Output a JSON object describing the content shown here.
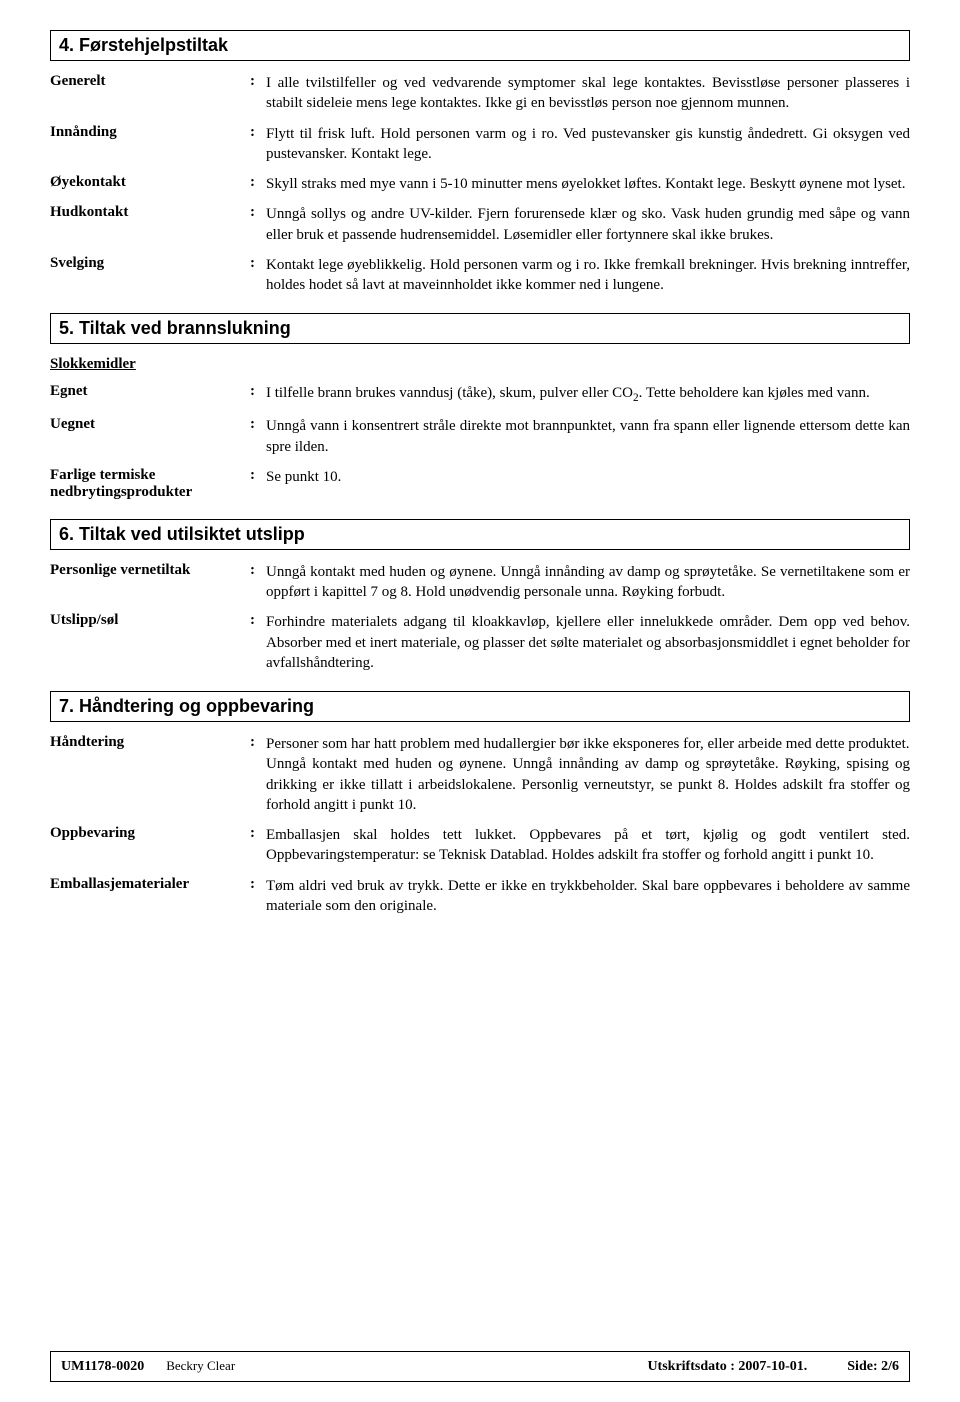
{
  "section4": {
    "title": "4.   Førstehjelpstiltak",
    "rows": [
      {
        "label": "Generelt",
        "value": "I alle tvilstilfeller og ved vedvarende symptomer skal lege kontaktes. Bevisstløse personer plasseres i stabilt sideleie mens lege kontaktes. Ikke gi en bevisstløs person noe gjennom munnen."
      },
      {
        "label": "Innånding",
        "value": "Flytt til frisk luft.  Hold personen varm og i ro.  Ved pustevansker gis kunstig åndedrett.  Gi oksygen ved pustevansker.  Kontakt lege."
      },
      {
        "label": "Øyekontakt",
        "value": "Skyll straks med mye vann i 5-10 minutter mens øyelokket løftes.  Kontakt lege.  Beskytt øynene mot lyset."
      },
      {
        "label": "Hudkontakt",
        "value": "Unngå sollys og andre UV-kilder.  Fjern forurensede klær og sko.  Vask huden grundig med såpe og vann eller bruk et passende hudrensemiddel.  Løsemidler eller fortynnere skal ikke brukes."
      },
      {
        "label": "Svelging",
        "value": "Kontakt lege øyeblikkelig.  Hold personen varm og i ro.  Ikke fremkall brekninger.  Hvis brekning inntreffer, holdes hodet så lavt at maveinnholdet ikke kommer ned i lungene."
      }
    ]
  },
  "section5": {
    "title": "5.   Tiltak ved brannslukning",
    "subhead": "Slokkemidler",
    "rows": [
      {
        "label": "Egnet",
        "value_html": "I tilfelle brann brukes vanndusj (tåke), skum, pulver eller CO<sub>2</sub>.  Tette beholdere kan kjøles med vann."
      },
      {
        "label": "Uegnet",
        "value": "Unngå vann i konsentrert stråle direkte mot brannpunktet, vann fra spann eller lignende ettersom dette kan spre ilden."
      },
      {
        "label": "Farlige termiske nedbrytingsprodukter",
        "value": "Se punkt 10."
      }
    ]
  },
  "section6": {
    "title": "6.   Tiltak ved utilsiktet utslipp",
    "rows": [
      {
        "label": "Personlige vernetiltak",
        "value": "Unngå kontakt med huden og øynene.  Unngå innånding av damp og sprøytetåke.  Se vernetiltakene som er oppført i kapittel 7 og 8.  Hold unødvendig personale unna.  Røyking forbudt."
      },
      {
        "label": "Utslipp/søl",
        "value": "Forhindre materialets adgang til kloakkavløp, kjellere eller innelukkede områder.  Dem opp ved behov.  Absorber med et inert materiale, og plasser det sølte materialet og absorbasjonsmiddlet i egnet beholder for avfallshåndtering."
      }
    ]
  },
  "section7": {
    "title": "7.   Håndtering og oppbevaring",
    "rows": [
      {
        "label": "Håndtering",
        "value": "Personer som har hatt problem med hudallergier bør ikke eksponeres for, eller arbeide med dette produktet.\nUnngå kontakt med huden og øynene.  Unngå innånding av damp og sprøytetåke.  Røyking, spising og drikking er ikke tillatt i arbeidslokalene.  Personlig verneutstyr, se punkt 8.  Holdes adskilt fra stoffer og forhold angitt i punkt 10."
      },
      {
        "label": "Oppbevaring",
        "value": "Emballasjen skal holdes tett lukket.  Oppbevares på et tørt, kjølig og godt ventilert sted.  Oppbevaringstemperatur: se Teknisk Datablad.  Holdes adskilt fra stoffer og forhold angitt i punkt 10."
      },
      {
        "label": "Emballasjematerialer",
        "value": "Tøm aldri ved bruk av trykk. Dette er ikke en trykkbeholder. Skal bare oppbevares i beholdere av samme materiale som den originale."
      }
    ]
  },
  "footer": {
    "code": "UM1178-0020",
    "name": "Beckry Clear",
    "date": "Utskriftsdato : 2007-10-01.",
    "page": "Side: 2/6"
  }
}
